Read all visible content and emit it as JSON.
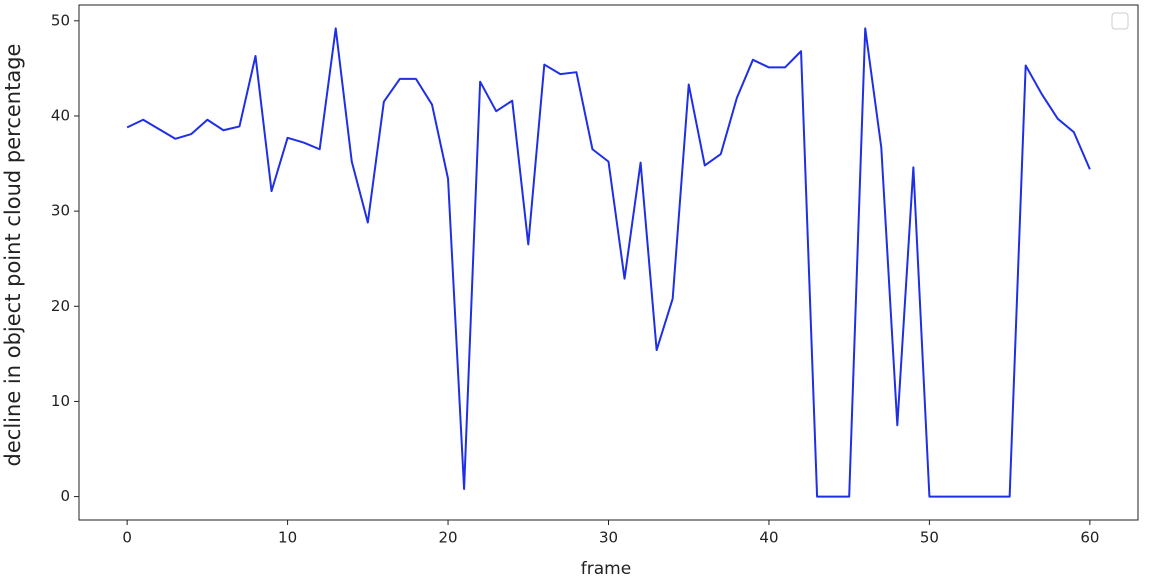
{
  "chart_data": {
    "type": "line",
    "xlabel": "frame",
    "ylabel": "decline in object point cloud percentage",
    "x": [
      0,
      1,
      2,
      3,
      4,
      5,
      6,
      7,
      8,
      9,
      10,
      11,
      12,
      13,
      14,
      15,
      16,
      17,
      18,
      19,
      20,
      21,
      22,
      23,
      24,
      25,
      26,
      27,
      28,
      29,
      30,
      31,
      32,
      33,
      34,
      35,
      36,
      37,
      38,
      39,
      40,
      41,
      42,
      43,
      44,
      45,
      46,
      47,
      48,
      49,
      50,
      51,
      52,
      53,
      54,
      55,
      56,
      57,
      58,
      59,
      60
    ],
    "values": [
      38.8,
      39.6,
      38.6,
      37.6,
      38.1,
      39.6,
      38.5,
      38.9,
      46.3,
      32.1,
      37.7,
      37.2,
      36.5,
      49.2,
      35.2,
      28.8,
      41.5,
      43.9,
      43.9,
      41.2,
      33.4,
      0.8,
      43.6,
      40.5,
      41.6,
      26.5,
      45.4,
      44.4,
      44.6,
      36.5,
      35.2,
      22.9,
      35.1,
      15.4,
      20.8,
      43.3,
      34.8,
      36.0,
      41.9,
      45.9,
      45.1,
      45.1,
      46.8,
      0,
      0,
      0,
      49.2,
      36.7,
      7.5,
      34.6,
      0,
      0,
      0,
      0,
      0,
      0,
      45.3,
      42.3,
      39.7,
      38.3,
      34.4
    ],
    "color": "#1f2fe6",
    "xlim": [
      -3,
      63
    ],
    "xticks": [
      0,
      10,
      20,
      30,
      40,
      50,
      60
    ],
    "ylim": [
      -2.46,
      51.66
    ],
    "yticks": [
      0,
      10,
      20,
      30,
      40,
      50
    ],
    "grid": false
  }
}
